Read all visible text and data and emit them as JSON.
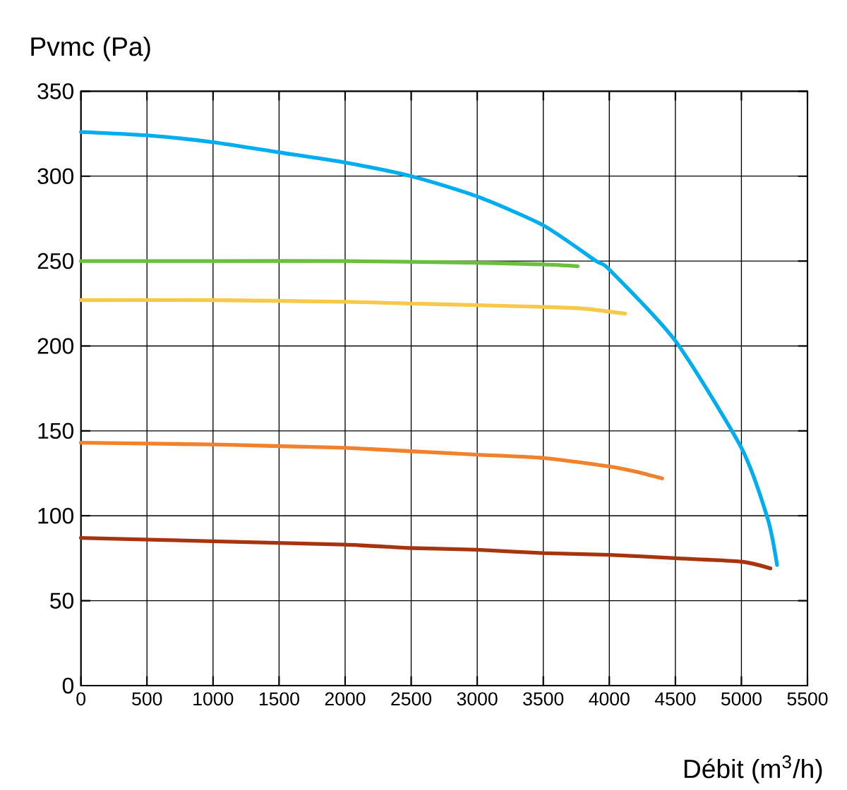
{
  "chart_data": {
    "type": "line",
    "xlabel": "Débit (m$^{3}$/h)",
    "ylabel": "Pvmc (Pa)",
    "xlim": [
      0,
      5500
    ],
    "ylim": [
      0,
      350
    ],
    "xticks": [
      0,
      500,
      1000,
      1500,
      2000,
      2500,
      3000,
      3500,
      4000,
      4500,
      5000,
      5500
    ],
    "yticks": [
      0,
      50,
      100,
      150,
      200,
      250,
      300,
      350
    ],
    "grid": true,
    "line_style": "solid",
    "series": [
      {
        "color": "#00aeef",
        "x": [
          0,
          500,
          1000,
          1500,
          2000,
          2500,
          3000,
          3500,
          3900,
          4000,
          4500,
          5000,
          5200,
          5270
        ],
        "values": [
          326,
          324,
          320,
          314,
          308,
          300,
          288,
          271,
          250,
          245,
          203,
          140,
          98,
          71
        ]
      },
      {
        "color": "#6abf3f",
        "x": [
          0,
          1000,
          2000,
          3000,
          3500,
          3760
        ],
        "values": [
          250,
          250,
          250,
          249,
          248,
          247
        ]
      },
      {
        "color": "#f7c94a",
        "x": [
          0,
          1000,
          2000,
          2500,
          3000,
          3500,
          3800,
          4120
        ],
        "values": [
          227,
          227,
          226,
          225,
          224,
          223,
          222,
          219
        ]
      },
      {
        "color": "#f0822d",
        "x": [
          0,
          1000,
          1500,
          2000,
          2500,
          3000,
          3500,
          4000,
          4200,
          4400
        ],
        "values": [
          143,
          142,
          141,
          140,
          138,
          136,
          134,
          129,
          126,
          122
        ]
      },
      {
        "color": "#a6350f",
        "x": [
          0,
          1000,
          2000,
          2500,
          3000,
          3500,
          4000,
          4500,
          5000,
          5220
        ],
        "values": [
          87,
          85,
          83,
          81,
          80,
          78,
          77,
          75,
          73,
          69
        ]
      }
    ]
  }
}
